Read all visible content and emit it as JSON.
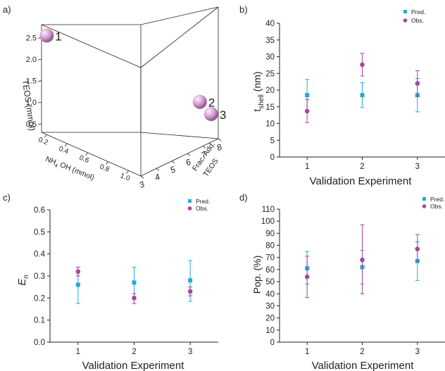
{
  "colors": {
    "pred": "#29a8d6",
    "obs": "#a4479f",
    "sphere": "#d39fd0",
    "axis": "#222222"
  },
  "chart_data": [
    {
      "id": "a",
      "panel_label": "a)",
      "type": "scatter3d",
      "points": [
        {
          "label": "1",
          "nh4oh": 0.2,
          "teos": 2.6,
          "frac_add": 3
        },
        {
          "label": "2",
          "nh4oh": 1.0,
          "teos": 1.1,
          "frac_add": 7.6
        },
        {
          "label": "3",
          "nh4oh": 1.05,
          "teos": 0.8,
          "frac_add": 8
        }
      ],
      "axes": {
        "x": {
          "title_main": "NH",
          "title_sub": "4",
          "title_rest": " OH (mmol)",
          "ticks": [
            {
              "v": 0.2,
              "t": "0.2"
            },
            {
              "v": 0.4,
              "t": "0.4"
            },
            {
              "v": 0.6,
              "t": "0.6"
            },
            {
              "v": 0.8,
              "t": "0.8"
            },
            {
              "v": 1.0,
              "t": "1.0"
            }
          ]
        },
        "y": {
          "title": "Frac. Add.",
          "title2": "TEOS",
          "ticks": [
            {
              "v": 3,
              "t": "3"
            },
            {
              "v": 4,
              "t": "4"
            },
            {
              "v": 5,
              "t": "5"
            },
            {
              "v": 6,
              "t": "6"
            },
            {
              "v": 7,
              "t": "7"
            },
            {
              "v": 8,
              "t": "8"
            }
          ]
        },
        "z": {
          "title": "TEOS (mmol)",
          "ticks": [
            {
              "v": 0.5,
              "t": "0.5"
            },
            {
              "v": 1.0,
              "t": "1.0"
            },
            {
              "v": 1.5,
              "t": "1.5"
            },
            {
              "v": 2.0,
              "t": "2.0"
            },
            {
              "v": 2.5,
              "t": "2.5"
            }
          ]
        }
      }
    },
    {
      "id": "b",
      "panel_label": "b)",
      "type": "scatter",
      "xlabel": "Validation Experiment",
      "ylabel_main": "t",
      "ylabel_sub": "shell",
      "ylabel_rest": " (nm)",
      "ylim": [
        0,
        40
      ],
      "yticks": [
        {
          "v": 0,
          "t": "0"
        },
        {
          "v": 5,
          "t": "5"
        },
        {
          "v": 10,
          "t": "10"
        },
        {
          "v": 15,
          "t": "15"
        },
        {
          "v": 20,
          "t": "20"
        },
        {
          "v": 25,
          "t": "25"
        },
        {
          "v": 30,
          "t": "30"
        },
        {
          "v": 35,
          "t": "35"
        },
        {
          "v": 40,
          "t": "40"
        }
      ],
      "xticks": [
        {
          "v": 1,
          "t": "1"
        },
        {
          "v": 2,
          "t": "2"
        },
        {
          "v": 3,
          "t": "3"
        }
      ],
      "legend": [
        "Pred.",
        "Obs."
      ],
      "series": [
        {
          "name": "Pred.",
          "x": [
            1,
            2,
            3
          ],
          "y": [
            18.5,
            18.5,
            18.5
          ],
          "err_low": [
            13.5,
            14.8,
            13.5
          ],
          "err_high": [
            23.2,
            22.2,
            23.5
          ]
        },
        {
          "name": "Obs.",
          "x": [
            1,
            2,
            3
          ],
          "y": [
            13.7,
            27.6,
            22.0
          ],
          "err_low": [
            10.3,
            24.2,
            18.3
          ],
          "err_high": [
            17.2,
            31.0,
            25.8
          ]
        }
      ]
    },
    {
      "id": "c",
      "panel_label": "c)",
      "type": "scatter",
      "xlabel": "Validation Experiment",
      "ylabel_main": "E",
      "ylabel_sub": "n",
      "ylabel_rest": "",
      "ylim": [
        0,
        0.6
      ],
      "yticks": [
        {
          "v": 0,
          "t": "0.0"
        },
        {
          "v": 0.1,
          "t": "0.1"
        },
        {
          "v": 0.2,
          "t": "0.2"
        },
        {
          "v": 0.3,
          "t": "0.3"
        },
        {
          "v": 0.4,
          "t": "0.4"
        },
        {
          "v": 0.5,
          "t": "0.5"
        },
        {
          "v": 0.6,
          "t": "0.6"
        }
      ],
      "xticks": [
        {
          "v": 1,
          "t": "1"
        },
        {
          "v": 2,
          "t": "2"
        },
        {
          "v": 3,
          "t": "3"
        }
      ],
      "legend": [
        "Pred.",
        "Obs."
      ],
      "series": [
        {
          "name": "Pred.",
          "x": [
            1,
            2,
            3
          ],
          "y": [
            0.26,
            0.27,
            0.28
          ],
          "err_low": [
            0.175,
            0.2,
            0.185
          ],
          "err_high": [
            0.32,
            0.34,
            0.37
          ]
        },
        {
          "name": "Obs.",
          "x": [
            1,
            2,
            3
          ],
          "y": [
            0.32,
            0.2,
            0.23
          ],
          "err_low": [
            0.3,
            0.175,
            0.21
          ],
          "err_high": [
            0.34,
            0.22,
            0.25
          ]
        }
      ]
    },
    {
      "id": "d",
      "panel_label": "d)",
      "type": "scatter",
      "xlabel": "Validation Experiment",
      "ylabel_main": "Pop. (%)",
      "ylabel_sub": "",
      "ylabel_rest": "",
      "ylim": [
        0,
        110
      ],
      "yticks": [
        {
          "v": 0,
          "t": "0"
        },
        {
          "v": 10,
          "t": "10"
        },
        {
          "v": 20,
          "t": "20"
        },
        {
          "v": 30,
          "t": "30"
        },
        {
          "v": 40,
          "t": "40"
        },
        {
          "v": 50,
          "t": "50"
        },
        {
          "v": 60,
          "t": "60"
        },
        {
          "v": 70,
          "t": "70"
        },
        {
          "v": 80,
          "t": "80"
        },
        {
          "v": 90,
          "t": "90"
        },
        {
          "v": 100,
          "t": "100"
        },
        {
          "v": 110,
          "t": "110"
        }
      ],
      "xticks": [
        {
          "v": 1,
          "t": "1"
        },
        {
          "v": 2,
          "t": "2"
        },
        {
          "v": 3,
          "t": "3"
        }
      ],
      "legend": [
        "Pred.",
        "Obs."
      ],
      "series": [
        {
          "name": "Pred.",
          "x": [
            1,
            2,
            3
          ],
          "y": [
            61,
            62,
            67
          ],
          "err_low": [
            48,
            48,
            51
          ],
          "err_high": [
            75,
            76,
            83
          ]
        },
        {
          "name": "Obs.",
          "x": [
            1,
            2,
            3
          ],
          "y": [
            54,
            68,
            77
          ],
          "err_low": [
            37,
            40,
            67
          ],
          "err_high": [
            71,
            97,
            89
          ]
        }
      ]
    }
  ]
}
